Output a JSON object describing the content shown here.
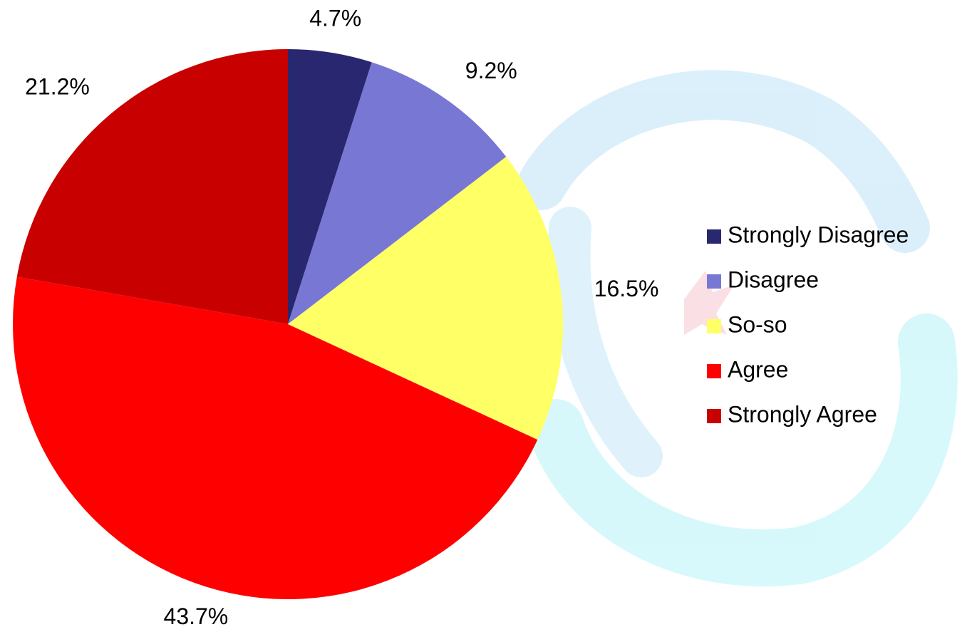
{
  "chart_data": {
    "type": "pie",
    "categories": [
      "Strongly Disagree",
      "Disagree",
      "So-so",
      "Agree",
      "Strongly Agree"
    ],
    "values": [
      4.7,
      9.2,
      16.5,
      43.7,
      21.2
    ],
    "value_labels": [
      "4.7%",
      "9.2%",
      "16.5%",
      "43.7%",
      "21.2%"
    ],
    "colors": [
      "#29276f",
      "#7877d3",
      "#ffff66",
      "#ff0000",
      "#c80000"
    ],
    "legend": "right"
  }
}
